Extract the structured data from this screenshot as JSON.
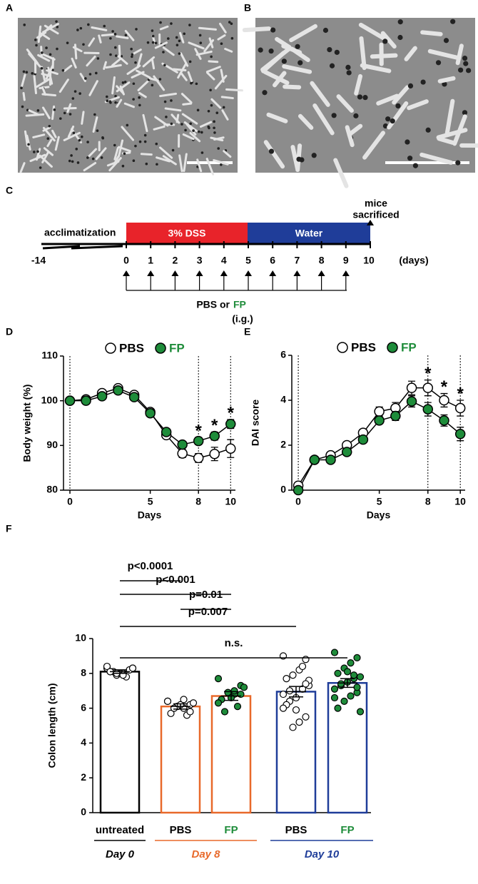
{
  "panel_labels": [
    "A",
    "B",
    "C",
    "D",
    "E",
    "F"
  ],
  "timeline": {
    "pre_label": "acclimatization",
    "phases": [
      "3% DSS",
      "Water"
    ],
    "start": "-14",
    "days": [
      "0",
      "1",
      "2",
      "3",
      "4",
      "5",
      "6",
      "7",
      "8",
      "9",
      "10"
    ],
    "unit": "(days)",
    "end_label": [
      "mice",
      "sacrificed"
    ],
    "treatment": {
      "prefix": "PBS or",
      "agent": "FP",
      "route": "(i.g.)"
    }
  },
  "chart_data": [
    {
      "type": "line",
      "xlabel": "Days",
      "ylabel": "Body weight (%)",
      "x": [
        0,
        1,
        2,
        3,
        4,
        5,
        6,
        7,
        8,
        9,
        10
      ],
      "xlim": [
        -0.4,
        10.3
      ],
      "ylim": [
        80,
        110
      ],
      "xticks": [
        0,
        5,
        8,
        10
      ],
      "yticks": [
        80,
        90,
        100,
        110
      ],
      "vlines": [
        0,
        8,
        10
      ],
      "series": [
        {
          "name": "PBS",
          "color": "#ffffff",
          "label_color": "#000000",
          "values": [
            100,
            100.3,
            101.7,
            102.8,
            101.3,
            97.5,
            92.3,
            88.2,
            87.2,
            88.1,
            89.3
          ],
          "errors": [
            0.3,
            0.4,
            0.4,
            0.4,
            0.4,
            0.5,
            0.6,
            0.9,
            1.0,
            1.5,
            2.0
          ]
        },
        {
          "name": "FP",
          "color": "#1e8c3a",
          "label_color": "#1e8c3a",
          "values": [
            100,
            100,
            101,
            102.3,
            100.8,
            97.2,
            93,
            90.2,
            91,
            92.1,
            94.8
          ],
          "errors": [
            0.3,
            0.3,
            0.3,
            0.3,
            0.4,
            0.5,
            0.5,
            0.6,
            0.8,
            0.9,
            1.0
          ]
        }
      ],
      "annotations": [
        {
          "x": 8,
          "text": "*"
        },
        {
          "x": 9,
          "text": "*"
        },
        {
          "x": 10,
          "text": "*"
        }
      ]
    },
    {
      "type": "line",
      "xlabel": "Days",
      "ylabel": "DAI score",
      "x": [
        0,
        1,
        2,
        3,
        4,
        5,
        6,
        7,
        8,
        9,
        10
      ],
      "xlim": [
        -0.4,
        10.3
      ],
      "ylim": [
        0,
        6
      ],
      "xticks": [
        0,
        5,
        8,
        10
      ],
      "yticks": [
        0,
        2,
        4,
        6
      ],
      "vlines": [
        0,
        8,
        10
      ],
      "series": [
        {
          "name": "PBS",
          "color": "#ffffff",
          "label_color": "#000000",
          "values": [
            0.2,
            1.35,
            1.55,
            2.0,
            2.55,
            3.5,
            3.65,
            4.55,
            4.55,
            4.0,
            3.65
          ],
          "errors": [
            0.1,
            0.1,
            0.1,
            0.15,
            0.15,
            0.2,
            0.25,
            0.3,
            0.35,
            0.3,
            0.35
          ]
        },
        {
          "name": "FP",
          "color": "#1e8c3a",
          "label_color": "#1e8c3a",
          "values": [
            0,
            1.35,
            1.35,
            1.7,
            2.25,
            3.1,
            3.3,
            3.95,
            3.6,
            3.1,
            2.5
          ],
          "errors": [
            0.05,
            0.1,
            0.1,
            0.15,
            0.15,
            0.15,
            0.2,
            0.25,
            0.3,
            0.25,
            0.3
          ]
        }
      ],
      "annotations": [
        {
          "x": 8,
          "text": "*"
        },
        {
          "x": 9,
          "text": "*"
        },
        {
          "x": 10,
          "text": "*"
        }
      ]
    },
    {
      "type": "bar",
      "ylabel": "Colon length (cm)",
      "categories": [
        "untreated",
        "PBS",
        "FP",
        "PBS",
        "FP"
      ],
      "category_colors": [
        "#000000",
        "#000000",
        "#1e8c3a",
        "#000000",
        "#1e8c3a"
      ],
      "values": [
        8.1,
        6.1,
        6.7,
        6.95,
        7.45
      ],
      "errors": [
        0.1,
        0.15,
        0.25,
        0.3,
        0.25
      ],
      "bar_colors": [
        "#000000",
        "#e8692a",
        "#e8692a",
        "#1f3d99",
        "#1f3d99"
      ],
      "point_fills": [
        "#ffffff",
        "#ffffff",
        "#1e8c3a",
        "#ffffff",
        "#1e8c3a"
      ],
      "points": [
        [
          8.3,
          8.2,
          8.0,
          7.9,
          8.1,
          8.3,
          7.8,
          8.0,
          8.1,
          8.4,
          8.2,
          7.9,
          8.0,
          8.1,
          8.3
        ],
        [
          6.4,
          6.2,
          6.0,
          6.1,
          5.7,
          6.3,
          5.6,
          6.2,
          6.0,
          6.4,
          5.8,
          6.5
        ],
        [
          7.7,
          7.3,
          6.8,
          6.9,
          6.5,
          7.2,
          6.1,
          6.6,
          5.8,
          6.3,
          6.8,
          7.0
        ],
        [
          9.0,
          8.8,
          8.2,
          7.9,
          7.7,
          7.3,
          7.1,
          6.6,
          6.4,
          6.8,
          5.5,
          5.2,
          4.9,
          6.2,
          7.6,
          8.4,
          5.9,
          7.0,
          6.0,
          7.4
        ],
        [
          9.2,
          8.9,
          8.6,
          8.3,
          8.0,
          7.8,
          7.7,
          7.5,
          7.3,
          7.1,
          6.9,
          6.7,
          6.4,
          6.0,
          5.8,
          7.9,
          8.1,
          7.4,
          6.6,
          7.2
        ]
      ],
      "groups": [
        {
          "label": "Day 0",
          "color": "#000000",
          "from": 0,
          "to": 0
        },
        {
          "label": "Day 8",
          "color": "#e8692a",
          "from": 1,
          "to": 2
        },
        {
          "label": "Day 10",
          "color": "#1f3d99",
          "from": 3,
          "to": 4
        }
      ],
      "comparisons": [
        {
          "from": 0,
          "to": 1,
          "label": "p<0.0001"
        },
        {
          "from": 1,
          "to": 2,
          "label": "p=0.01"
        },
        {
          "from": 0,
          "to": 2,
          "label": "p<0.001"
        },
        {
          "from": 0,
          "to": 3,
          "label": "p=0.007"
        },
        {
          "from": 0,
          "to": 4,
          "label": "n.s."
        }
      ],
      "ylim": [
        0,
        10
      ],
      "yticks": [
        0,
        2,
        4,
        6,
        8,
        10
      ]
    }
  ]
}
